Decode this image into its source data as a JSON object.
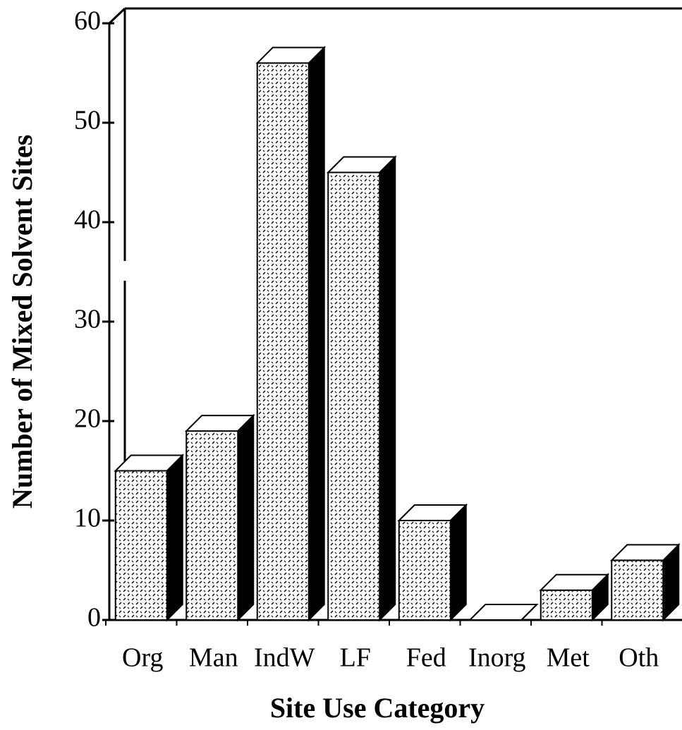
{
  "chart_data": {
    "type": "bar3d",
    "xlabel": "Site Use Category",
    "ylabel": "Number of Mixed Solvent Sites",
    "categories": [
      "Org",
      "Man",
      "IndW",
      "LF",
      "Fed",
      "Inorg",
      "Met",
      "Oth"
    ],
    "values": [
      15,
      19,
      56,
      45,
      10,
      0,
      3,
      6
    ],
    "color": "#ffffff",
    "side_color": "#000000",
    "ylim": [
      0,
      60
    ],
    "yticks": [
      0,
      10,
      20,
      30,
      40,
      50,
      60
    ],
    "grid": false
  }
}
